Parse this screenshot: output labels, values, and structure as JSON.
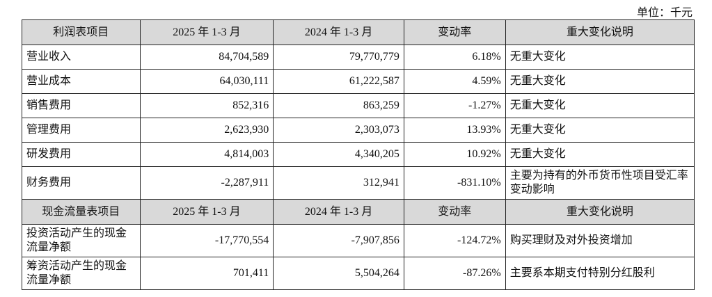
{
  "unit": "单位：千元",
  "income": {
    "headers": [
      "利润表项目",
      "2025 年 1-3 月",
      "2024 年 1-3 月",
      "变动率",
      "重大变化说明"
    ],
    "rows": [
      [
        "营业收入",
        "84,704,589",
        "79,770,779",
        "6.18%",
        "无重大变化"
      ],
      [
        "营业成本",
        "64,030,111",
        "61,222,587",
        "4.59%",
        "无重大变化"
      ],
      [
        "销售费用",
        "852,316",
        "863,259",
        "-1.27%",
        "无重大变化"
      ],
      [
        "管理费用",
        "2,623,930",
        "2,303,073",
        "13.93%",
        "无重大变化"
      ],
      [
        "研发费用",
        "4,814,003",
        "4,340,205",
        "10.92%",
        "无重大变化"
      ],
      [
        "财务费用",
        "-2,287,911",
        "312,941",
        "-831.10%",
        "主要为持有的外币货币性项目受汇率变动影响"
      ]
    ]
  },
  "cashflow": {
    "headers": [
      "现金流量表项目",
      "2025 年 1-3 月",
      "2024 年 1-3 月",
      "变动率",
      "重大变化说明"
    ],
    "rows": [
      [
        "投资活动产生的现金流量净额",
        "-17,770,554",
        "-7,907,856",
        "-124.72%",
        "购买理财及对外投资增加"
      ],
      [
        "筹资活动产生的现金流量净额",
        "701,411",
        "5,504,264",
        "-87.26%",
        "主要系本期支付特别分红股利"
      ]
    ]
  }
}
